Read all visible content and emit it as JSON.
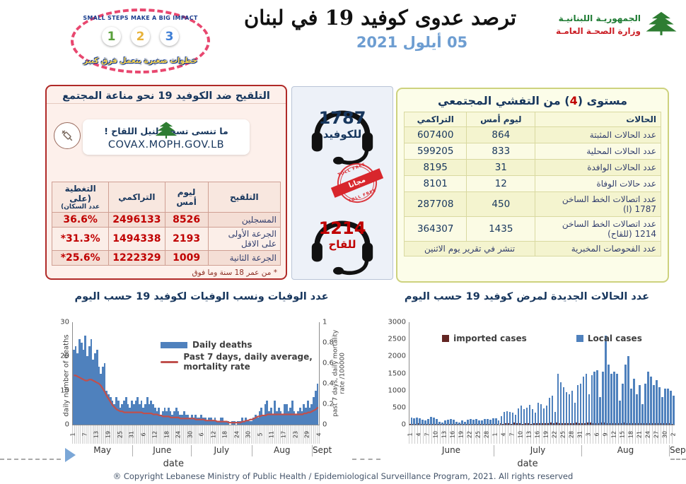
{
  "header": {
    "title": "ترصد عدوى كوفيد 19 في لبنان",
    "date": "05 أيلول 2021",
    "logo": {
      "line1": "الجمهوريـة اللبنانيـة",
      "line2": "وزارة الصحـة العامـة"
    },
    "badge": {
      "top_text": "SMALL STEPS MAKE A BIG IMPACT",
      "steps": [
        "1",
        "2",
        "3"
      ],
      "bottom_text": "خطوات صغيرة بتعمل فرق كبير"
    }
  },
  "vaccination": {
    "title": "التلقيح ضد الكوفيد 19  نحو مناعة المجتمع",
    "reminder": "ما تنسى تسجل لنيل اللقاح !",
    "site": "COVAX.MOPH.GOV.LB",
    "columns": [
      "التلقيح",
      "ليوم أمس",
      "التراكمي",
      "التغطية (على",
      "عدد السكان)"
    ],
    "rows": [
      {
        "label": "المسجلين",
        "yesterday": "8526",
        "cumulative": "2496133",
        "coverage": "36.6%"
      },
      {
        "label": "الجرعة الأولى على الاقل",
        "yesterday": "2193",
        "cumulative": "1494338",
        "coverage": "*31.3%"
      },
      {
        "label": "الجرعة الثانية",
        "yesterday": "1009",
        "cumulative": "1222329",
        "coverage": "*25.6%"
      }
    ],
    "footnote": "* من عمر 18 سنة وما فوق"
  },
  "hotlines": {
    "covid": {
      "number": "1787",
      "label": "للكوفيد"
    },
    "vaccine": {
      "number": "1214",
      "label": "للقاح"
    },
    "stamp": {
      "banner": "مجانا",
      "ring": "TOLL FREE"
    }
  },
  "outbreak": {
    "title_pre": "مستوى (",
    "level": "4",
    "title_post": ") من التفشي المجتمعي",
    "columns": [
      "الحالات",
      "ليوم أمس",
      "التراكمي"
    ],
    "rows": [
      {
        "label": "عدد الحالات المثبتة",
        "yesterday": "864",
        "cumulative": "607400"
      },
      {
        "label": "عدد الحالات المحلية",
        "yesterday": "833",
        "cumulative": "599205"
      },
      {
        "label": "عدد الحالات الوافدة",
        "yesterday": "31",
        "cumulative": "8195"
      },
      {
        "label": "عدد حالات الوفاة",
        "yesterday": "12",
        "cumulative": "8101"
      },
      {
        "label": "عدد اتصالات الخط الساخن 1787  (ا)",
        "yesterday": "450",
        "cumulative": "287708"
      },
      {
        "label": "عدد اتصالات الخط الساخن 1214 (للقاح)",
        "yesterday": "1435",
        "cumulative": "364307"
      }
    ],
    "tests_row": {
      "label": "عدد الفحوصات المخبرية",
      "value": "تنشر في تقرير يوم الاثنين"
    }
  },
  "chart_data": [
    {
      "type": "bar",
      "title": "عدد الوفيات ونسب الوفيات لكوفيد 19 حسب اليوم",
      "xlabel": "date",
      "ylabel_left": "daily number of deaths",
      "ylabel_right": "past 7 days, daily mortality rate /100000",
      "ylim_left": [
        0,
        30
      ],
      "yticks_left": [
        0,
        10,
        20,
        30
      ],
      "ylim_right": [
        0,
        1
      ],
      "yticks_right": [
        0,
        0.2,
        0.4,
        0.6,
        0.8,
        1
      ],
      "legend_position": "top-center",
      "grid": false,
      "months": [
        {
          "label": "May",
          "days": 31
        },
        {
          "label": "June",
          "days": 30
        },
        {
          "label": "July",
          "days": 31
        },
        {
          "label": "Aug",
          "days": 31
        },
        {
          "label": "Sept",
          "days": 4
        }
      ],
      "tick_interval": 6,
      "x_tick_labels": [
        "1",
        "7",
        "13",
        "19",
        "25",
        "31",
        "6",
        "12",
        "18",
        "24",
        "30",
        "6",
        "12",
        "18",
        "24",
        "30",
        "5",
        "11",
        "17",
        "23",
        "29",
        "4"
      ],
      "series": [
        {
          "name": "Daily deaths",
          "type": "bar",
          "axis": "left",
          "color": "#4f81bd",
          "values": [
            22,
            23,
            21,
            25,
            24,
            22,
            26,
            20,
            23,
            25,
            19,
            21,
            22,
            17,
            15,
            17,
            18,
            10,
            9,
            8,
            7,
            6,
            8,
            7,
            5,
            6,
            7,
            8,
            6,
            5,
            7,
            6,
            7,
            8,
            6,
            7,
            5,
            6,
            8,
            6,
            7,
            6,
            5,
            4,
            5,
            3,
            4,
            5,
            4,
            5,
            4,
            3,
            4,
            5,
            4,
            3,
            3,
            4,
            3,
            3,
            2,
            3,
            2,
            3,
            2,
            2,
            3,
            2,
            2,
            1,
            2,
            2,
            1,
            2,
            1,
            1,
            2,
            2,
            1,
            1,
            1,
            0,
            1,
            1,
            0,
            1,
            1,
            2,
            1,
            2,
            1,
            1,
            1,
            2,
            3,
            2,
            4,
            5,
            3,
            6,
            7,
            4,
            5,
            3,
            7,
            4,
            5,
            4,
            3,
            6,
            6,
            4,
            5,
            7,
            4,
            3,
            4,
            5,
            4,
            6,
            5,
            7,
            5,
            6,
            8,
            10,
            12
          ]
        },
        {
          "name": "Past 7 days, daily average, mortality rate",
          "type": "line",
          "axis": "right",
          "color": "#c0504d",
          "values": [
            0.48,
            0.48,
            0.47,
            0.46,
            0.45,
            0.44,
            0.43,
            0.43,
            0.44,
            0.44,
            0.43,
            0.42,
            0.41,
            0.4,
            0.38,
            0.35,
            0.32,
            0.28,
            0.25,
            0.22,
            0.19,
            0.17,
            0.15,
            0.14,
            0.13,
            0.13,
            0.12,
            0.12,
            0.12,
            0.12,
            0.12,
            0.12,
            0.12,
            0.12,
            0.12,
            0.12,
            0.11,
            0.11,
            0.11,
            0.11,
            0.11,
            0.1,
            0.1,
            0.1,
            0.09,
            0.09,
            0.08,
            0.08,
            0.08,
            0.08,
            0.07,
            0.07,
            0.07,
            0.07,
            0.07,
            0.06,
            0.06,
            0.06,
            0.06,
            0.06,
            0.06,
            0.06,
            0.06,
            0.05,
            0.05,
            0.05,
            0.05,
            0.05,
            0.04,
            0.04,
            0.04,
            0.04,
            0.04,
            0.04,
            0.03,
            0.03,
            0.03,
            0.03,
            0.03,
            0.03,
            0.02,
            0.02,
            0.02,
            0.02,
            0.02,
            0.02,
            0.02,
            0.03,
            0.03,
            0.04,
            0.04,
            0.05,
            0.05,
            0.06,
            0.07,
            0.08,
            0.08,
            0.09,
            0.09,
            0.09,
            0.1,
            0.1,
            0.1,
            0.1,
            0.1,
            0.1,
            0.1,
            0.1,
            0.1,
            0.1,
            0.1,
            0.1,
            0.1,
            0.1,
            0.1,
            0.1,
            0.1,
            0.1,
            0.1,
            0.11,
            0.11,
            0.12,
            0.12,
            0.13,
            0.14,
            0.15,
            0.17
          ]
        }
      ]
    },
    {
      "type": "bar",
      "title": "عدد الحالات الجديدة لمرض كوفيد 19 حسب اليوم",
      "xlabel": "date",
      "ylim_left": [
        0,
        3000
      ],
      "yticks_left": [
        0,
        500,
        1000,
        1500,
        2000,
        2500,
        3000
      ],
      "legend_position": "top",
      "grid": false,
      "months": [
        {
          "label": "June",
          "days": 30
        },
        {
          "label": "July",
          "days": 31
        },
        {
          "label": "Aug",
          "days": 31
        },
        {
          "label": "Sept",
          "days": 2
        }
      ],
      "tick_interval": 3,
      "x_tick_labels": [
        "1",
        "4",
        "7",
        "10",
        "13",
        "16",
        "19",
        "22",
        "25",
        "28",
        "1",
        "4",
        "7",
        "10",
        "13",
        "16",
        "19",
        "22",
        "25",
        "28",
        "31",
        "3",
        "6",
        "9",
        "12",
        "15",
        "18",
        "21",
        "24",
        "27",
        "30",
        "2"
      ],
      "series": [
        {
          "name": "imported cases",
          "type": "bar",
          "color": "#632523",
          "values": [
            30,
            25,
            20,
            35,
            30,
            25,
            20,
            30,
            25,
            20,
            15,
            20,
            25,
            30,
            20,
            25,
            15,
            20,
            25,
            20,
            25,
            30,
            20,
            25,
            20,
            15,
            25,
            20,
            25,
            30,
            30,
            25,
            35,
            30,
            40,
            35,
            30,
            60,
            40,
            35,
            30,
            35,
            40,
            30,
            35,
            45,
            40,
            35,
            50,
            45,
            60,
            40,
            55,
            50,
            45,
            40,
            50,
            45,
            40,
            55,
            50,
            50,
            45,
            55,
            60,
            50,
            45,
            40,
            55,
            60,
            50,
            45,
            50,
            45,
            40,
            50,
            55,
            45,
            40,
            45,
            40,
            45,
            35,
            40,
            45,
            50,
            40,
            45,
            40,
            35,
            40,
            40,
            35,
            30
          ]
        },
        {
          "name": "Local cases",
          "type": "bar",
          "color": "#4f81bd",
          "values": [
            210,
            180,
            200,
            190,
            150,
            120,
            160,
            220,
            200,
            170,
            90,
            60,
            130,
            150,
            160,
            140,
            80,
            70,
            120,
            90,
            140,
            160,
            150,
            170,
            130,
            120,
            160,
            170,
            150,
            180,
            180,
            120,
            250,
            380,
            400,
            380,
            350,
            300,
            480,
            550,
            450,
            500,
            580,
            450,
            350,
            650,
            600,
            480,
            550,
            780,
            850,
            380,
            1500,
            1250,
            1100,
            950,
            900,
            1000,
            650,
            1150,
            1200,
            1400,
            1500,
            900,
            1450,
            1550,
            1600,
            800,
            1550,
            2600,
            1750,
            1500,
            1550,
            1500,
            700,
            1200,
            1750,
            2000,
            1050,
            1350,
            900,
            1150,
            600,
            1200,
            1550,
            1400,
            1150,
            1300,
            1100,
            800,
            1050,
            1050,
            1000,
            850
          ]
        }
      ]
    }
  ],
  "footer": {
    "copyright": "® Copyright Lebanese Ministry of Public Health / Epidemiological Surveillance Program, 2021. All rights reserved"
  }
}
